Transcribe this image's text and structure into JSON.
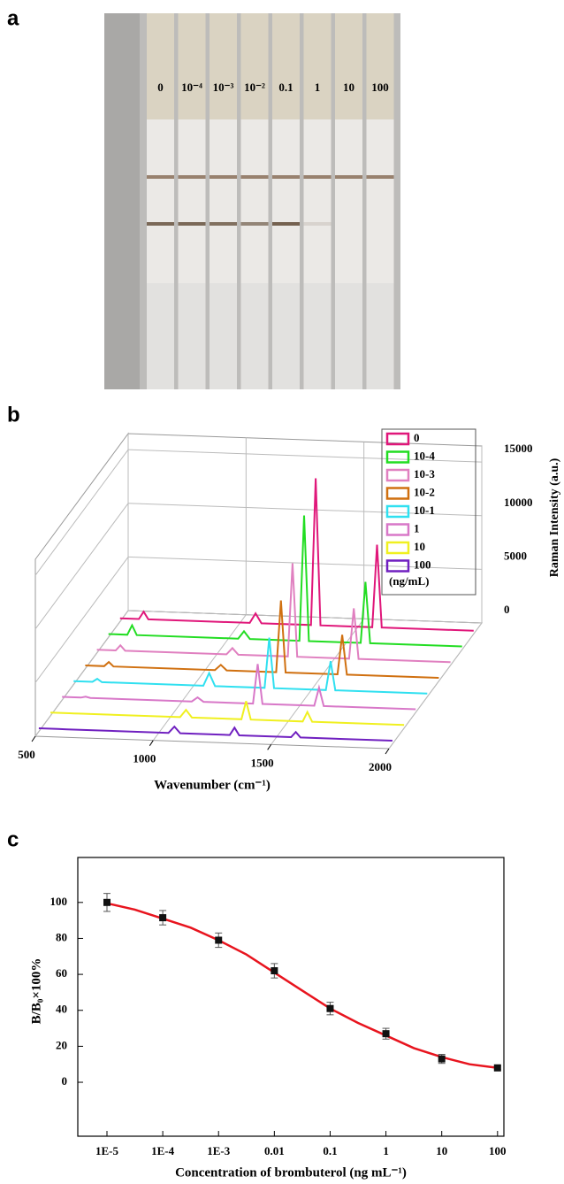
{
  "panel_labels": [
    "a",
    "b",
    "c"
  ],
  "photo": {
    "strip_labels": [
      "0",
      "10⁻⁴",
      "10⁻³",
      "10⁻²",
      "0.1",
      "1",
      "10",
      "100"
    ]
  },
  "chart_data": [
    {
      "type": "waterfall",
      "xlabel": "Wavenumber (cm⁻¹)",
      "ylabel": "Raman Intensity (a.u.)",
      "legend_title": "(ng/mL)",
      "xlim": [
        500,
        2000
      ],
      "xticks": [
        500,
        1000,
        1500,
        2000
      ],
      "ylim": [
        0,
        16500
      ],
      "yticks": [
        0,
        5000,
        10000,
        15000
      ],
      "x": [
        500,
        580,
        600,
        620,
        1050,
        1075,
        1100,
        1310,
        1330,
        1350,
        1570,
        1590,
        1610,
        2000
      ],
      "series": [
        {
          "name": "0",
          "color": "#e0177a",
          "values": [
            300,
            300,
            1000,
            300,
            300,
            1200,
            300,
            300,
            14000,
            300,
            300,
            8000,
            300,
            300
          ]
        },
        {
          "name": "10-4",
          "color": "#22dd22",
          "values": [
            300,
            300,
            1200,
            300,
            300,
            1000,
            300,
            300,
            12000,
            300,
            300,
            6000,
            300,
            300
          ]
        },
        {
          "name": "10-3",
          "color": "#e080c0",
          "values": [
            300,
            300,
            800,
            300,
            300,
            900,
            300,
            300,
            9000,
            300,
            300,
            5000,
            300,
            300
          ]
        },
        {
          "name": "10-2",
          "color": "#d07010",
          "values": [
            300,
            300,
            700,
            300,
            300,
            800,
            300,
            300,
            7000,
            300,
            300,
            4000,
            300,
            300
          ]
        },
        {
          "name": "10-1",
          "color": "#30e0f0",
          "values": [
            300,
            300,
            600,
            300,
            300,
            1500,
            300,
            300,
            5000,
            300,
            300,
            3000,
            300,
            300
          ]
        },
        {
          "name": "1",
          "color": "#d878c8",
          "values": [
            300,
            300,
            400,
            300,
            300,
            700,
            300,
            300,
            4000,
            300,
            300,
            2000,
            300,
            300
          ]
        },
        {
          "name": "10",
          "color": "#f0f020",
          "values": [
            300,
            300,
            300,
            300,
            300,
            1000,
            300,
            300,
            2000,
            300,
            300,
            1200,
            300,
            300
          ]
        },
        {
          "name": "100",
          "color": "#7020c0",
          "values": [
            300,
            300,
            300,
            300,
            300,
            900,
            300,
            300,
            1000,
            300,
            300,
            800,
            300,
            300
          ]
        }
      ]
    },
    {
      "type": "scatter",
      "xlabel": "Concentration of brombuterol (ng mL⁻¹)",
      "ylabel": "B/B₀×100%",
      "log_x": true,
      "xlim": [
        3e-06,
        130
      ],
      "ylim": [
        -30,
        125
      ],
      "xticks": [
        {
          "value": 1e-05,
          "label": "1E-5"
        },
        {
          "value": 0.0001,
          "label": "1E-4"
        },
        {
          "value": 0.001,
          "label": "1E-3"
        },
        0.01,
        0.1,
        1,
        10,
        100
      ],
      "yticks": [
        0,
        20,
        40,
        60,
        80,
        100
      ],
      "x": [
        1e-05,
        0.0001,
        0.001,
        0.01,
        0.1,
        1,
        10,
        100
      ],
      "series": [
        {
          "color": "#111111",
          "values": [
            100,
            91.5,
            79,
            62,
            41,
            27,
            13,
            8
          ],
          "errors": [
            5,
            4,
            4,
            4,
            3.5,
            3,
            2.5,
            1
          ]
        },
        {
          "color": "#e8141e",
          "x": [
            1e-05,
            3.16e-05,
            0.0001,
            0.000316,
            0.001,
            0.00316,
            0.01,
            0.0316,
            0.1,
            0.316,
            1,
            3.16,
            10,
            31.6,
            100
          ],
          "values": [
            99.5,
            96,
            91,
            86,
            79,
            71,
            61,
            51,
            41,
            33,
            26,
            19,
            14,
            10,
            8
          ]
        }
      ]
    }
  ]
}
